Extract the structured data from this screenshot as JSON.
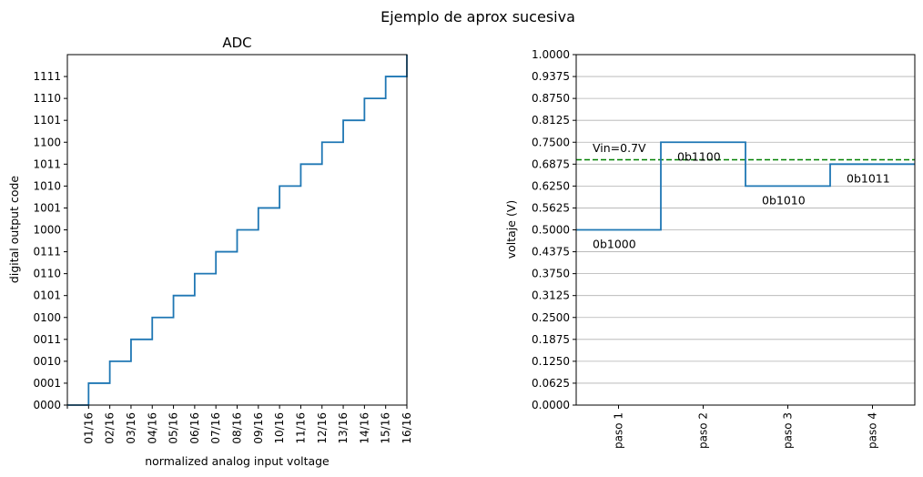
{
  "figure": {
    "title": "Ejemplo de aprox sucesiva"
  },
  "chart_data": [
    {
      "type": "line",
      "drawstyle": "steps-post",
      "title": "ADC",
      "xlabel": "normalized analog input voltage",
      "ylabel": "digital output code",
      "xlim": [
        0,
        16
      ],
      "ylim": [
        0,
        16
      ],
      "x_tick_labels": [
        "",
        "01/16",
        "02/16",
        "03/16",
        "04/16",
        "05/16",
        "06/16",
        "07/16",
        "08/16",
        "09/16",
        "10/16",
        "11/16",
        "12/16",
        "13/16",
        "14/16",
        "15/16",
        "16/16"
      ],
      "y_tick_labels": [
        "0000",
        "0001",
        "0010",
        "0011",
        "0100",
        "0101",
        "0110",
        "0111",
        "1000",
        "1001",
        "1010",
        "1011",
        "1100",
        "1101",
        "1110",
        "1111"
      ],
      "series": [
        {
          "color": "#1f77b4",
          "x": [
            0,
            1,
            2,
            3,
            4,
            5,
            6,
            7,
            8,
            9,
            10,
            11,
            12,
            13,
            14,
            15,
            16
          ],
          "y": [
            0,
            1,
            2,
            3,
            4,
            5,
            6,
            7,
            8,
            9,
            10,
            11,
            12,
            13,
            14,
            15,
            16
          ]
        }
      ],
      "grid": false
    },
    {
      "type": "line",
      "drawstyle": "steps-post",
      "title": "",
      "xlabel": "",
      "ylabel": "voltaje (V)",
      "categories": [
        "paso 1",
        "paso 2",
        "paso 3",
        "paso 4"
      ],
      "ylim": [
        0,
        1
      ],
      "y_tick_labels": [
        "0.0000",
        "0.0625",
        "0.1250",
        "0.1875",
        "0.2500",
        "0.3125",
        "0.3750",
        "0.4375",
        "0.5000",
        "0.5625",
        "0.6250",
        "0.6875",
        "0.7500",
        "0.8125",
        "0.8750",
        "0.9375",
        "1.0000"
      ],
      "series": [
        {
          "color": "#1f77b4",
          "values": [
            0.5,
            0.75,
            0.625,
            0.6875
          ]
        }
      ],
      "reference_line": {
        "value": 0.7,
        "style": "dashed",
        "color": "#008000",
        "label": "Vin=0.7V"
      },
      "annotations": [
        "0b1000",
        "0b1100",
        "0b1010",
        "0b1011"
      ],
      "grid": "horizontal"
    }
  ]
}
